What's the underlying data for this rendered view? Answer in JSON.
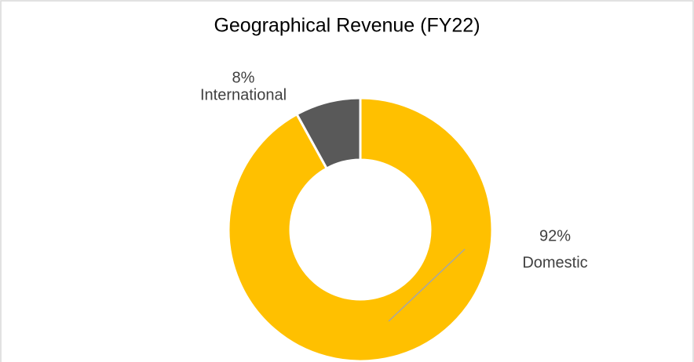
{
  "chart_data": {
    "type": "pie",
    "title": "Geographical Revenue (FY22)",
    "categories": [
      "Domestic",
      "International"
    ],
    "values": [
      92,
      8
    ],
    "value_labels": [
      "92%",
      "8%"
    ],
    "colors": [
      "#FFC000",
      "#595959"
    ],
    "donut": true
  }
}
